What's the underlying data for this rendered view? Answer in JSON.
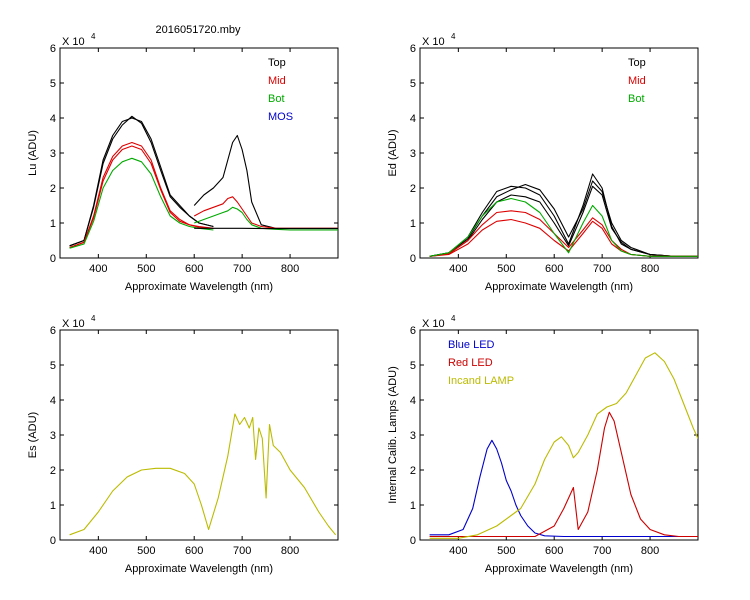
{
  "figure_title": "2016051720.mby",
  "chart_data": [
    {
      "id": "lu",
      "type": "line",
      "title": "2016051720.mby",
      "xlabel": "Approximate Wavelength (nm)",
      "ylabel": "Lu (ADU)",
      "scale_label": "X 10",
      "scale_exponent": "4",
      "xlim": [
        320,
        900
      ],
      "ylim": [
        0,
        6
      ],
      "xticks": [
        400,
        500,
        600,
        700,
        800
      ],
      "yticks": [
        0,
        1,
        2,
        3,
        4,
        5,
        6
      ],
      "legend": [
        {
          "label": "Top",
          "color": "#000000"
        },
        {
          "label": "Mid",
          "color": "#dd0000"
        },
        {
          "label": "Bot",
          "color": "#00aa00"
        },
        {
          "label": "MOS",
          "color": "#0000cc"
        }
      ],
      "series": [
        {
          "name": "Top",
          "color": "#000000",
          "x": [
            340,
            370,
            390,
            410,
            430,
            450,
            470,
            490,
            510,
            530,
            550,
            570,
            590,
            610,
            640
          ],
          "y": [
            0.35,
            0.5,
            1.5,
            2.8,
            3.5,
            3.9,
            4.0,
            3.9,
            3.4,
            2.6,
            1.8,
            1.5,
            1.2,
            1.0,
            0.9
          ]
        },
        {
          "name": "Top",
          "color": "#000000",
          "x": [
            340,
            370,
            390,
            410,
            430,
            450,
            470,
            490,
            510,
            530,
            550,
            570,
            590,
            610,
            640
          ],
          "y": [
            0.35,
            0.5,
            1.45,
            2.7,
            3.4,
            3.8,
            4.05,
            3.85,
            3.3,
            2.5,
            1.75,
            1.45,
            1.2,
            1.0,
            0.9
          ]
        },
        {
          "name": "Mid",
          "color": "#dd0000",
          "x": [
            340,
            370,
            390,
            410,
            430,
            450,
            470,
            490,
            510,
            530,
            550,
            570,
            590,
            610,
            640
          ],
          "y": [
            0.3,
            0.45,
            1.2,
            2.3,
            2.9,
            3.2,
            3.3,
            3.2,
            2.8,
            2.0,
            1.35,
            1.1,
            0.95,
            0.9,
            0.85
          ]
        },
        {
          "name": "Mid",
          "color": "#dd0000",
          "x": [
            340,
            370,
            390,
            410,
            430,
            450,
            470,
            490,
            510,
            530,
            550,
            570,
            590,
            610,
            640
          ],
          "y": [
            0.3,
            0.45,
            1.15,
            2.2,
            2.8,
            3.1,
            3.2,
            3.1,
            2.7,
            1.95,
            1.3,
            1.05,
            0.95,
            0.88,
            0.85
          ]
        },
        {
          "name": "Bot",
          "color": "#00aa00",
          "x": [
            340,
            370,
            390,
            410,
            430,
            450,
            470,
            490,
            510,
            530,
            550,
            570,
            590,
            610,
            640
          ],
          "y": [
            0.28,
            0.4,
            1.05,
            2.0,
            2.5,
            2.75,
            2.85,
            2.75,
            2.4,
            1.75,
            1.2,
            1.0,
            0.9,
            0.85,
            0.8
          ]
        },
        {
          "name": "Top",
          "color": "#000000",
          "x": [
            600,
            620,
            640,
            660,
            670,
            680,
            690,
            700,
            710,
            720,
            740,
            770,
            800,
            830,
            860,
            900
          ],
          "y": [
            1.5,
            1.8,
            2.0,
            2.3,
            2.8,
            3.3,
            3.5,
            3.1,
            2.5,
            1.6,
            0.95,
            0.85,
            0.85,
            0.85,
            0.85,
            0.85
          ]
        },
        {
          "name": "Mid",
          "color": "#dd0000",
          "x": [
            600,
            620,
            640,
            660,
            670,
            680,
            690,
            700,
            710,
            720,
            740,
            770,
            800,
            830,
            860,
            900
          ],
          "y": [
            1.2,
            1.35,
            1.45,
            1.55,
            1.7,
            1.75,
            1.6,
            1.4,
            1.2,
            1.0,
            0.9,
            0.85,
            0.85,
            0.85,
            0.85,
            0.85
          ]
        },
        {
          "name": "Bot",
          "color": "#00aa00",
          "x": [
            600,
            620,
            640,
            660,
            670,
            680,
            690,
            700,
            710,
            720,
            740,
            770,
            800,
            830,
            860,
            900
          ],
          "y": [
            1.0,
            1.1,
            1.2,
            1.3,
            1.35,
            1.45,
            1.4,
            1.3,
            1.1,
            0.95,
            0.85,
            0.82,
            0.8,
            0.8,
            0.8,
            0.8
          ]
        },
        {
          "name": "MOS",
          "color": "#000000",
          "x": [
            600,
            650,
            700,
            750,
            800,
            850,
            900
          ],
          "y": [
            0.85,
            0.85,
            0.85,
            0.84,
            0.84,
            0.84,
            0.84
          ]
        }
      ]
    },
    {
      "id": "ed",
      "type": "line",
      "title": "",
      "xlabel": "Approximate Wavelength (nm)",
      "ylabel": "Ed  (ADU)",
      "scale_label": "X 10",
      "scale_exponent": "4",
      "xlim": [
        320,
        900
      ],
      "ylim": [
        0,
        6
      ],
      "xticks": [
        400,
        500,
        600,
        700,
        800
      ],
      "yticks": [
        0,
        1,
        2,
        3,
        4,
        5,
        6
      ],
      "legend": [
        {
          "label": "Top",
          "color": "#000000"
        },
        {
          "label": "Mid",
          "color": "#dd0000"
        },
        {
          "label": "Bot",
          "color": "#00aa00"
        }
      ],
      "series": [
        {
          "name": "Top",
          "color": "#000000",
          "x": [
            340,
            380,
            420,
            450,
            480,
            510,
            540,
            570,
            600,
            630,
            660,
            680,
            700,
            720,
            740,
            760,
            800,
            850,
            900
          ],
          "y": [
            0.05,
            0.15,
            0.6,
            1.3,
            1.9,
            2.05,
            2.0,
            1.8,
            1.2,
            0.4,
            1.5,
            2.4,
            2.0,
            0.9,
            0.4,
            0.25,
            0.1,
            0.05,
            0.05
          ]
        },
        {
          "name": "Top",
          "color": "#000000",
          "x": [
            340,
            380,
            420,
            450,
            480,
            510,
            540,
            570,
            600,
            630,
            660,
            680,
            700,
            720,
            740,
            760,
            800,
            850,
            900
          ],
          "y": [
            0.05,
            0.15,
            0.55,
            1.2,
            1.75,
            1.95,
            2.1,
            1.95,
            1.4,
            0.6,
            1.4,
            2.2,
            1.9,
            1.0,
            0.5,
            0.3,
            0.1,
            0.05,
            0.05
          ]
        },
        {
          "name": "Top",
          "color": "#000000",
          "x": [
            340,
            380,
            420,
            450,
            480,
            510,
            540,
            570,
            600,
            630,
            660,
            680,
            700,
            720,
            740,
            760,
            800,
            850,
            900
          ],
          "y": [
            0.05,
            0.12,
            0.5,
            1.1,
            1.6,
            1.8,
            1.75,
            1.6,
            1.0,
            0.35,
            1.3,
            2.05,
            1.8,
            0.85,
            0.45,
            0.25,
            0.1,
            0.05,
            0.05
          ]
        },
        {
          "name": "Mid",
          "color": "#dd0000",
          "x": [
            340,
            380,
            420,
            450,
            480,
            510,
            540,
            570,
            600,
            630,
            660,
            680,
            700,
            720,
            740,
            760,
            800,
            850,
            900
          ],
          "y": [
            0.05,
            0.1,
            0.4,
            0.8,
            1.05,
            1.1,
            1.0,
            0.85,
            0.5,
            0.2,
            0.7,
            1.05,
            0.85,
            0.4,
            0.2,
            0.1,
            0.05,
            0.05,
            0.05
          ]
        },
        {
          "name": "Mid",
          "color": "#dd0000",
          "x": [
            340,
            380,
            420,
            450,
            480,
            510,
            540,
            570,
            600,
            630,
            660,
            680,
            700,
            720,
            740,
            760,
            800,
            850,
            900
          ],
          "y": [
            0.05,
            0.12,
            0.5,
            0.95,
            1.3,
            1.35,
            1.3,
            1.1,
            0.7,
            0.3,
            0.8,
            1.15,
            0.95,
            0.5,
            0.25,
            0.1,
            0.05,
            0.05,
            0.05
          ]
        },
        {
          "name": "Bot",
          "color": "#00aa00",
          "x": [
            340,
            380,
            420,
            450,
            480,
            510,
            540,
            570,
            600,
            630,
            660,
            680,
            700,
            720,
            740,
            760,
            800,
            850,
            900
          ],
          "y": [
            0.05,
            0.15,
            0.6,
            1.2,
            1.6,
            1.7,
            1.6,
            1.3,
            0.7,
            0.15,
            1.0,
            1.5,
            1.2,
            0.5,
            0.2,
            0.1,
            0.05,
            0.05,
            0.05
          ]
        }
      ]
    },
    {
      "id": "es",
      "type": "line",
      "title": "",
      "xlabel": "Approximate Wavelength (nm)",
      "ylabel": "Es (ADU)",
      "scale_label": "X 10",
      "scale_exponent": "4",
      "xlim": [
        320,
        900
      ],
      "ylim": [
        0,
        6
      ],
      "xticks": [
        400,
        500,
        600,
        700,
        800
      ],
      "yticks": [
        0,
        1,
        2,
        3,
        4,
        5,
        6
      ],
      "legend": [],
      "series": [
        {
          "name": "Es",
          "color": "#bbbb00",
          "x": [
            340,
            370,
            400,
            430,
            460,
            490,
            520,
            550,
            580,
            600,
            615,
            630,
            650,
            670,
            685,
            695,
            705,
            715,
            722,
            728,
            735,
            742,
            750,
            757,
            765,
            780,
            800,
            830,
            860,
            880,
            895
          ],
          "y": [
            0.15,
            0.3,
            0.8,
            1.4,
            1.8,
            2.0,
            2.05,
            2.05,
            1.9,
            1.6,
            1.0,
            0.3,
            1.2,
            2.4,
            3.6,
            3.3,
            3.5,
            3.2,
            3.5,
            2.3,
            3.2,
            2.9,
            1.2,
            3.3,
            2.7,
            2.5,
            2.0,
            1.5,
            0.8,
            0.4,
            0.15
          ]
        }
      ]
    },
    {
      "id": "lamps",
      "type": "line",
      "title": "",
      "xlabel": "Approximate Wavelength (nm)",
      "ylabel": "Internal Calib. Lamps (ADU)",
      "scale_label": "X 10",
      "scale_exponent": "4",
      "xlim": [
        320,
        900
      ],
      "ylim": [
        0,
        6
      ],
      "xticks": [
        400,
        500,
        600,
        700,
        800
      ],
      "yticks": [
        0,
        1,
        2,
        3,
        4,
        5,
        6
      ],
      "legend": [
        {
          "label": "Blue LED",
          "color": "#0000cc"
        },
        {
          "label": "Red LED",
          "color": "#cc0000"
        },
        {
          "label": "Incand LAMP",
          "color": "#bbbb00"
        }
      ],
      "series": [
        {
          "name": "Blue LED",
          "color": "#0000cc",
          "x": [
            340,
            380,
            410,
            430,
            445,
            460,
            470,
            480,
            490,
            500,
            510,
            520,
            530,
            545,
            560,
            580,
            620,
            700,
            800,
            900
          ],
          "y": [
            0.15,
            0.15,
            0.3,
            0.9,
            1.8,
            2.6,
            2.85,
            2.6,
            2.2,
            1.7,
            1.4,
            1.0,
            0.7,
            0.4,
            0.2,
            0.12,
            0.1,
            0.1,
            0.1,
            0.1
          ]
        },
        {
          "name": "Red LED",
          "color": "#cc0000",
          "x": [
            340,
            500,
            560,
            600,
            620,
            640,
            650,
            670,
            690,
            705,
            715,
            725,
            740,
            760,
            780,
            800,
            830,
            860,
            900
          ],
          "y": [
            0.1,
            0.1,
            0.1,
            0.4,
            0.9,
            1.5,
            0.3,
            0.8,
            2.0,
            3.2,
            3.65,
            3.4,
            2.5,
            1.3,
            0.6,
            0.3,
            0.15,
            0.1,
            0.1
          ]
        },
        {
          "name": "Incand LAMP",
          "color": "#bbbb00",
          "x": [
            340,
            400,
            440,
            480,
            510,
            530,
            560,
            580,
            600,
            615,
            630,
            640,
            650,
            670,
            690,
            710,
            730,
            750,
            770,
            790,
            810,
            830,
            850,
            870,
            890,
            900
          ],
          "y": [
            0.05,
            0.05,
            0.15,
            0.4,
            0.7,
            0.9,
            1.6,
            2.3,
            2.8,
            2.95,
            2.7,
            2.35,
            2.5,
            3.0,
            3.6,
            3.8,
            3.9,
            4.2,
            4.7,
            5.2,
            5.35,
            5.1,
            4.6,
            3.9,
            3.2,
            2.9
          ]
        }
      ]
    }
  ]
}
